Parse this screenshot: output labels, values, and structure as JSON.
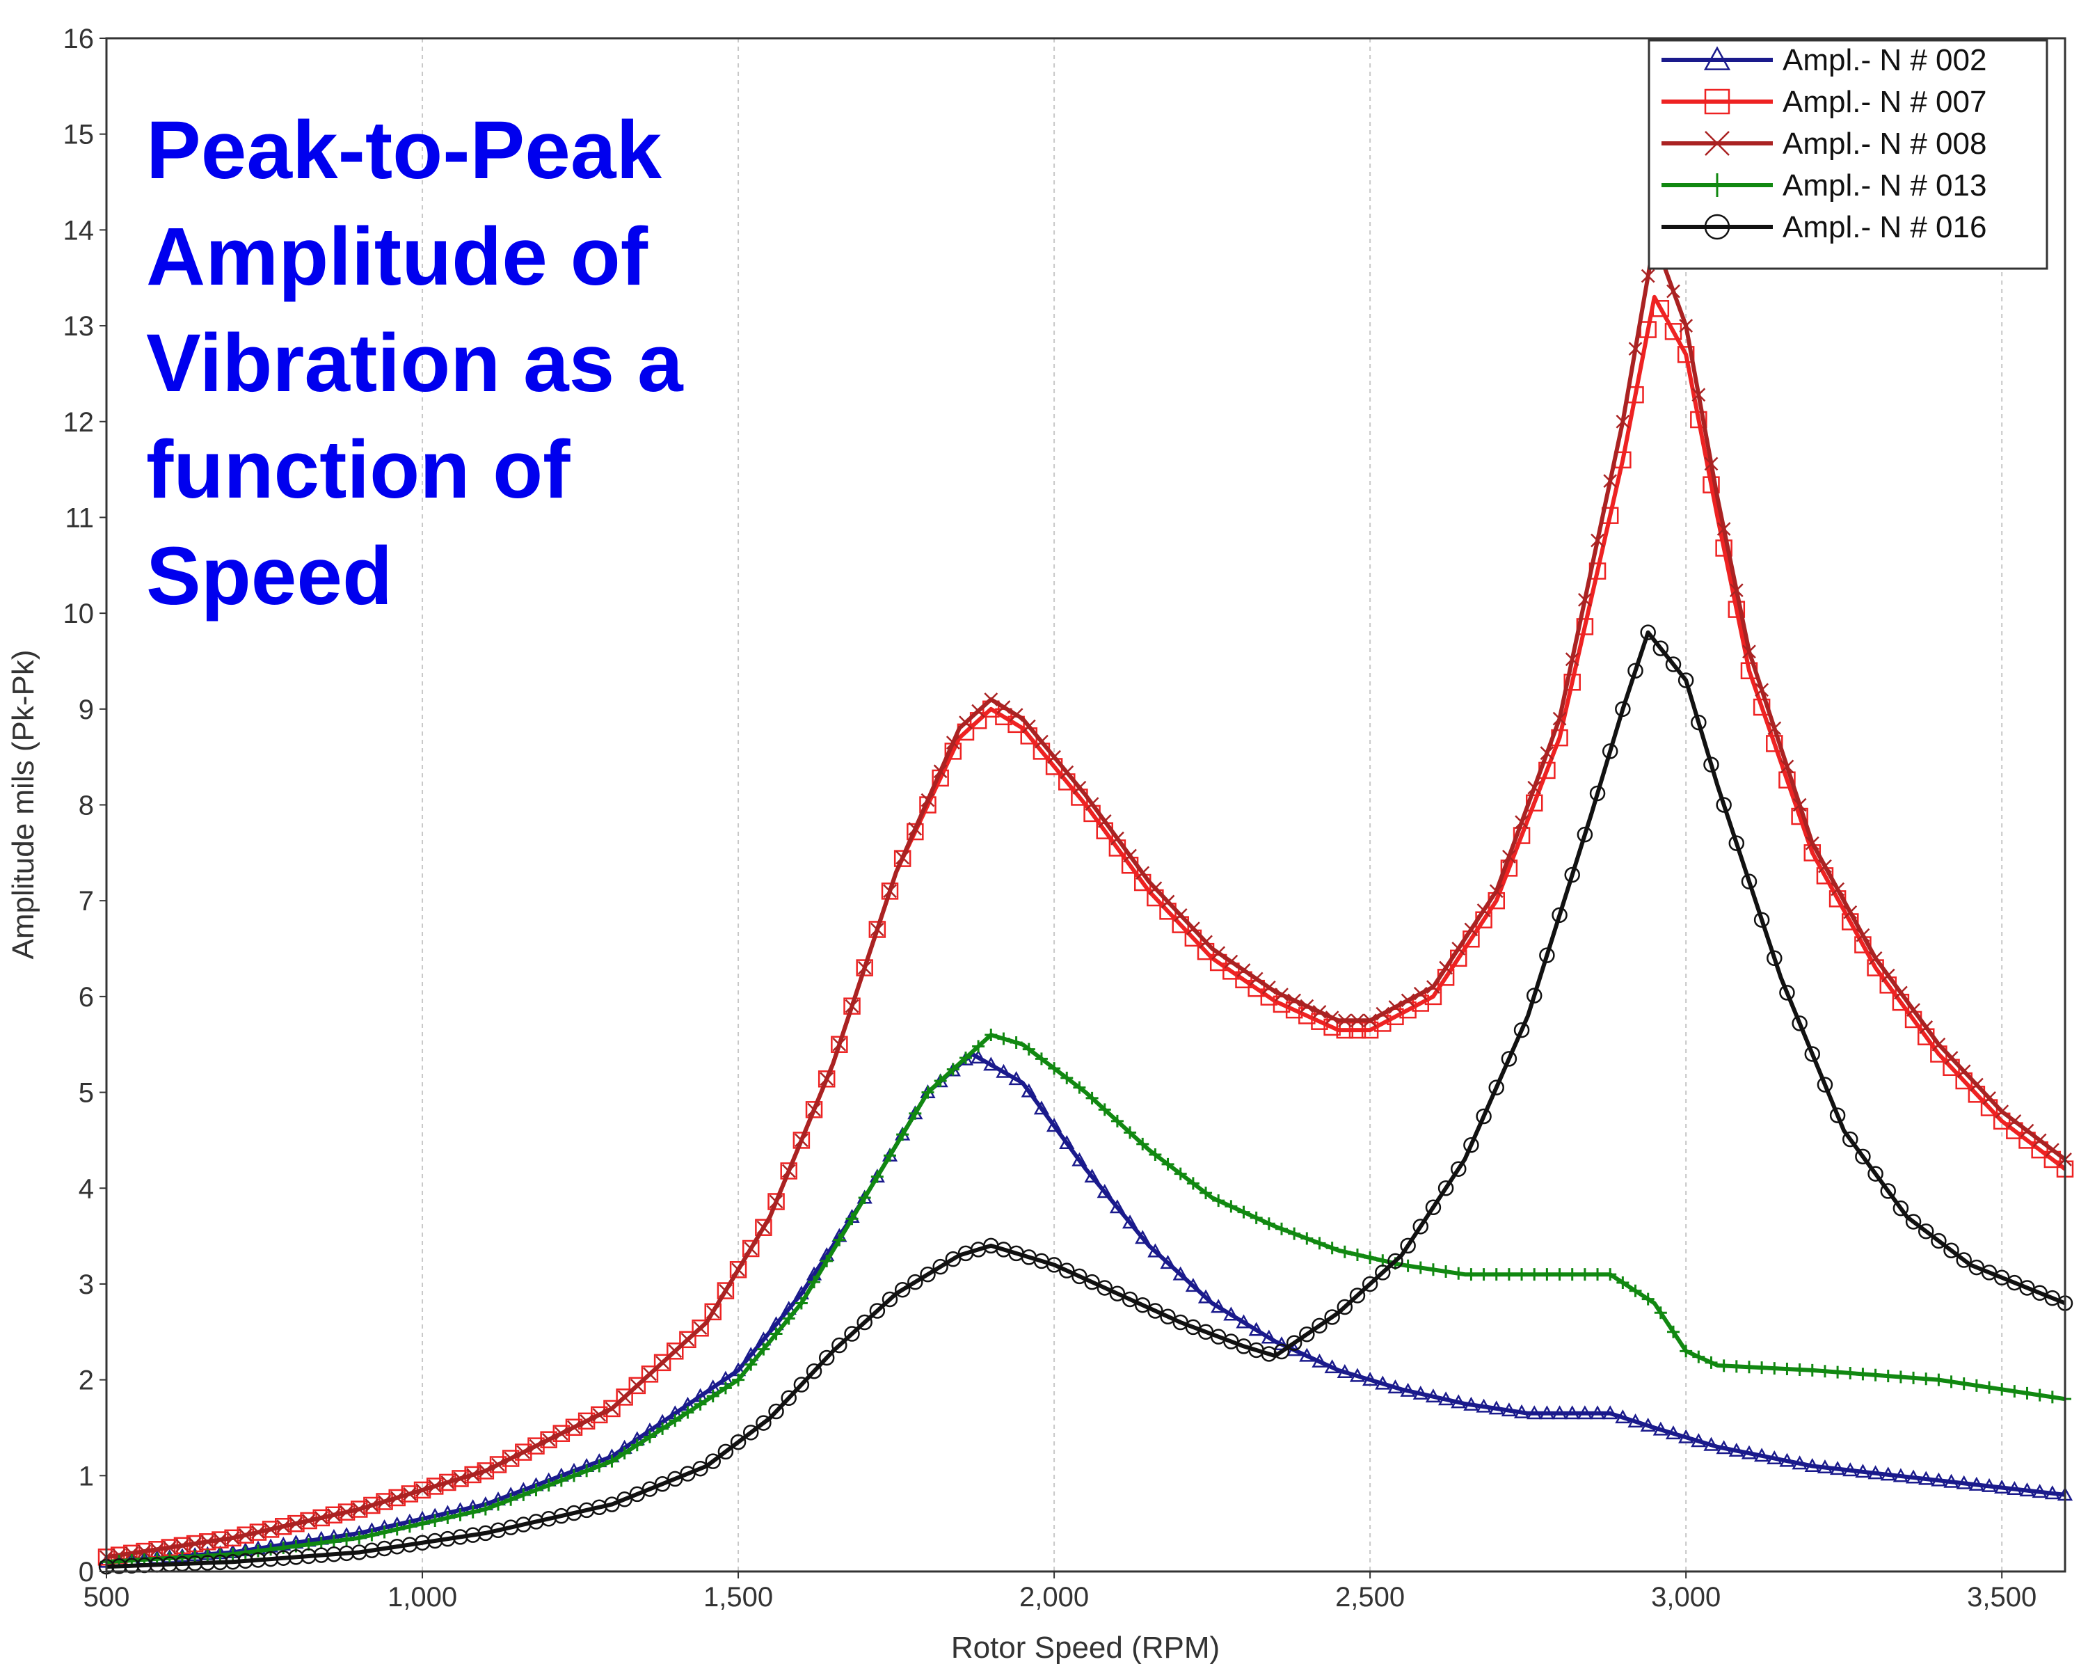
{
  "chart_data": {
    "type": "line",
    "title": "Peak-to-Peak\nAmplitude of\nVibration as a\nfunction of\nSpeed",
    "xlabel": "Rotor Speed (RPM)",
    "ylabel": "Amplitude mils (Pk-Pk)",
    "xlim": [
      500,
      3600
    ],
    "ylim": [
      0,
      16
    ],
    "x_ticks": [
      500,
      1000,
      1500,
      2000,
      2500,
      3000,
      3500
    ],
    "x_tick_labels": [
      "500",
      "1,000",
      "1,500",
      "2,000",
      "2,500",
      "3,000",
      "3,500"
    ],
    "y_ticks": [
      0,
      1,
      2,
      3,
      4,
      5,
      6,
      7,
      8,
      9,
      10,
      11,
      12,
      13,
      14,
      15,
      16
    ],
    "y_tick_labels": [
      "0",
      "1",
      "2",
      "3",
      "4",
      "5",
      "6",
      "7",
      "8",
      "9",
      "10",
      "11",
      "12",
      "13",
      "14",
      "15",
      "16"
    ],
    "grid": "vertical dashed",
    "legend_position": "top-right",
    "series": [
      {
        "name": "Ampl.- N # 002",
        "color": "#1a1a8c",
        "marker": "triangle",
        "points": [
          [
            500,
            0.1
          ],
          [
            700,
            0.2
          ],
          [
            900,
            0.4
          ],
          [
            1100,
            0.7
          ],
          [
            1300,
            1.2
          ],
          [
            1500,
            2.1
          ],
          [
            1600,
            2.9
          ],
          [
            1700,
            3.9
          ],
          [
            1800,
            5.0
          ],
          [
            1870,
            5.4
          ],
          [
            1950,
            5.1
          ],
          [
            2050,
            4.2
          ],
          [
            2150,
            3.4
          ],
          [
            2250,
            2.8
          ],
          [
            2350,
            2.4
          ],
          [
            2450,
            2.1
          ],
          [
            2550,
            1.9
          ],
          [
            2650,
            1.75
          ],
          [
            2750,
            1.65
          ],
          [
            2880,
            1.65
          ],
          [
            2950,
            1.5
          ],
          [
            3050,
            1.3
          ],
          [
            3200,
            1.1
          ],
          [
            3400,
            0.95
          ],
          [
            3600,
            0.8
          ]
        ]
      },
      {
        "name": "Ampl.- N # 007",
        "color": "#ee2222",
        "marker": "square",
        "points": [
          [
            500,
            0.15
          ],
          [
            700,
            0.35
          ],
          [
            900,
            0.65
          ],
          [
            1100,
            1.05
          ],
          [
            1300,
            1.7
          ],
          [
            1450,
            2.6
          ],
          [
            1550,
            3.7
          ],
          [
            1650,
            5.3
          ],
          [
            1750,
            7.3
          ],
          [
            1850,
            8.7
          ],
          [
            1900,
            9.0
          ],
          [
            1950,
            8.8
          ],
          [
            2050,
            8.0
          ],
          [
            2150,
            7.1
          ],
          [
            2250,
            6.4
          ],
          [
            2350,
            5.95
          ],
          [
            2450,
            5.65
          ],
          [
            2500,
            5.65
          ],
          [
            2600,
            6.0
          ],
          [
            2700,
            7.0
          ],
          [
            2800,
            8.7
          ],
          [
            2900,
            11.6
          ],
          [
            2950,
            13.3
          ],
          [
            3000,
            12.7
          ],
          [
            3050,
            11.0
          ],
          [
            3100,
            9.4
          ],
          [
            3200,
            7.5
          ],
          [
            3300,
            6.3
          ],
          [
            3400,
            5.4
          ],
          [
            3500,
            4.7
          ],
          [
            3600,
            4.2
          ]
        ]
      },
      {
        "name": "Ampl.- N # 008",
        "color": "#aa2222",
        "marker": "x",
        "points": [
          [
            500,
            0.15
          ],
          [
            700,
            0.35
          ],
          [
            900,
            0.65
          ],
          [
            1100,
            1.05
          ],
          [
            1300,
            1.7
          ],
          [
            1450,
            2.6
          ],
          [
            1550,
            3.7
          ],
          [
            1650,
            5.3
          ],
          [
            1750,
            7.3
          ],
          [
            1850,
            8.8
          ],
          [
            1900,
            9.1
          ],
          [
            1950,
            8.9
          ],
          [
            2050,
            8.1
          ],
          [
            2150,
            7.2
          ],
          [
            2250,
            6.5
          ],
          [
            2350,
            6.05
          ],
          [
            2450,
            5.75
          ],
          [
            2500,
            5.75
          ],
          [
            2600,
            6.1
          ],
          [
            2700,
            7.1
          ],
          [
            2800,
            8.9
          ],
          [
            2900,
            12.0
          ],
          [
            2950,
            13.9
          ],
          [
            3000,
            13.0
          ],
          [
            3050,
            11.2
          ],
          [
            3100,
            9.6
          ],
          [
            3200,
            7.6
          ],
          [
            3300,
            6.4
          ],
          [
            3400,
            5.5
          ],
          [
            3500,
            4.8
          ],
          [
            3600,
            4.3
          ]
        ]
      },
      {
        "name": "Ampl.- N # 013",
        "color": "#118811",
        "marker": "plus",
        "points": [
          [
            500,
            0.1
          ],
          [
            700,
            0.18
          ],
          [
            900,
            0.35
          ],
          [
            1100,
            0.65
          ],
          [
            1300,
            1.15
          ],
          [
            1500,
            2.0
          ],
          [
            1600,
            2.8
          ],
          [
            1700,
            3.9
          ],
          [
            1800,
            5.0
          ],
          [
            1900,
            5.6
          ],
          [
            1950,
            5.5
          ],
          [
            2050,
            5.0
          ],
          [
            2150,
            4.4
          ],
          [
            2250,
            3.9
          ],
          [
            2350,
            3.6
          ],
          [
            2450,
            3.35
          ],
          [
            2550,
            3.2
          ],
          [
            2650,
            3.1
          ],
          [
            2750,
            3.1
          ],
          [
            2880,
            3.1
          ],
          [
            2950,
            2.8
          ],
          [
            3000,
            2.3
          ],
          [
            3050,
            2.15
          ],
          [
            3200,
            2.1
          ],
          [
            3400,
            2.0
          ],
          [
            3600,
            1.8
          ]
        ]
      },
      {
        "name": "Ampl.- N # 016",
        "color": "#111111",
        "marker": "circle",
        "points": [
          [
            500,
            0.05
          ],
          [
            700,
            0.1
          ],
          [
            900,
            0.2
          ],
          [
            1100,
            0.4
          ],
          [
            1300,
            0.7
          ],
          [
            1450,
            1.1
          ],
          [
            1550,
            1.6
          ],
          [
            1650,
            2.3
          ],
          [
            1750,
            2.9
          ],
          [
            1850,
            3.3
          ],
          [
            1900,
            3.4
          ],
          [
            2000,
            3.2
          ],
          [
            2100,
            2.9
          ],
          [
            2200,
            2.6
          ],
          [
            2300,
            2.35
          ],
          [
            2350,
            2.25
          ],
          [
            2450,
            2.7
          ],
          [
            2550,
            3.3
          ],
          [
            2650,
            4.3
          ],
          [
            2750,
            5.8
          ],
          [
            2850,
            7.9
          ],
          [
            2900,
            9.0
          ],
          [
            2940,
            9.8
          ],
          [
            3000,
            9.3
          ],
          [
            3050,
            8.2
          ],
          [
            3150,
            6.2
          ],
          [
            3250,
            4.6
          ],
          [
            3350,
            3.7
          ],
          [
            3450,
            3.2
          ],
          [
            3600,
            2.8
          ]
        ]
      }
    ]
  }
}
